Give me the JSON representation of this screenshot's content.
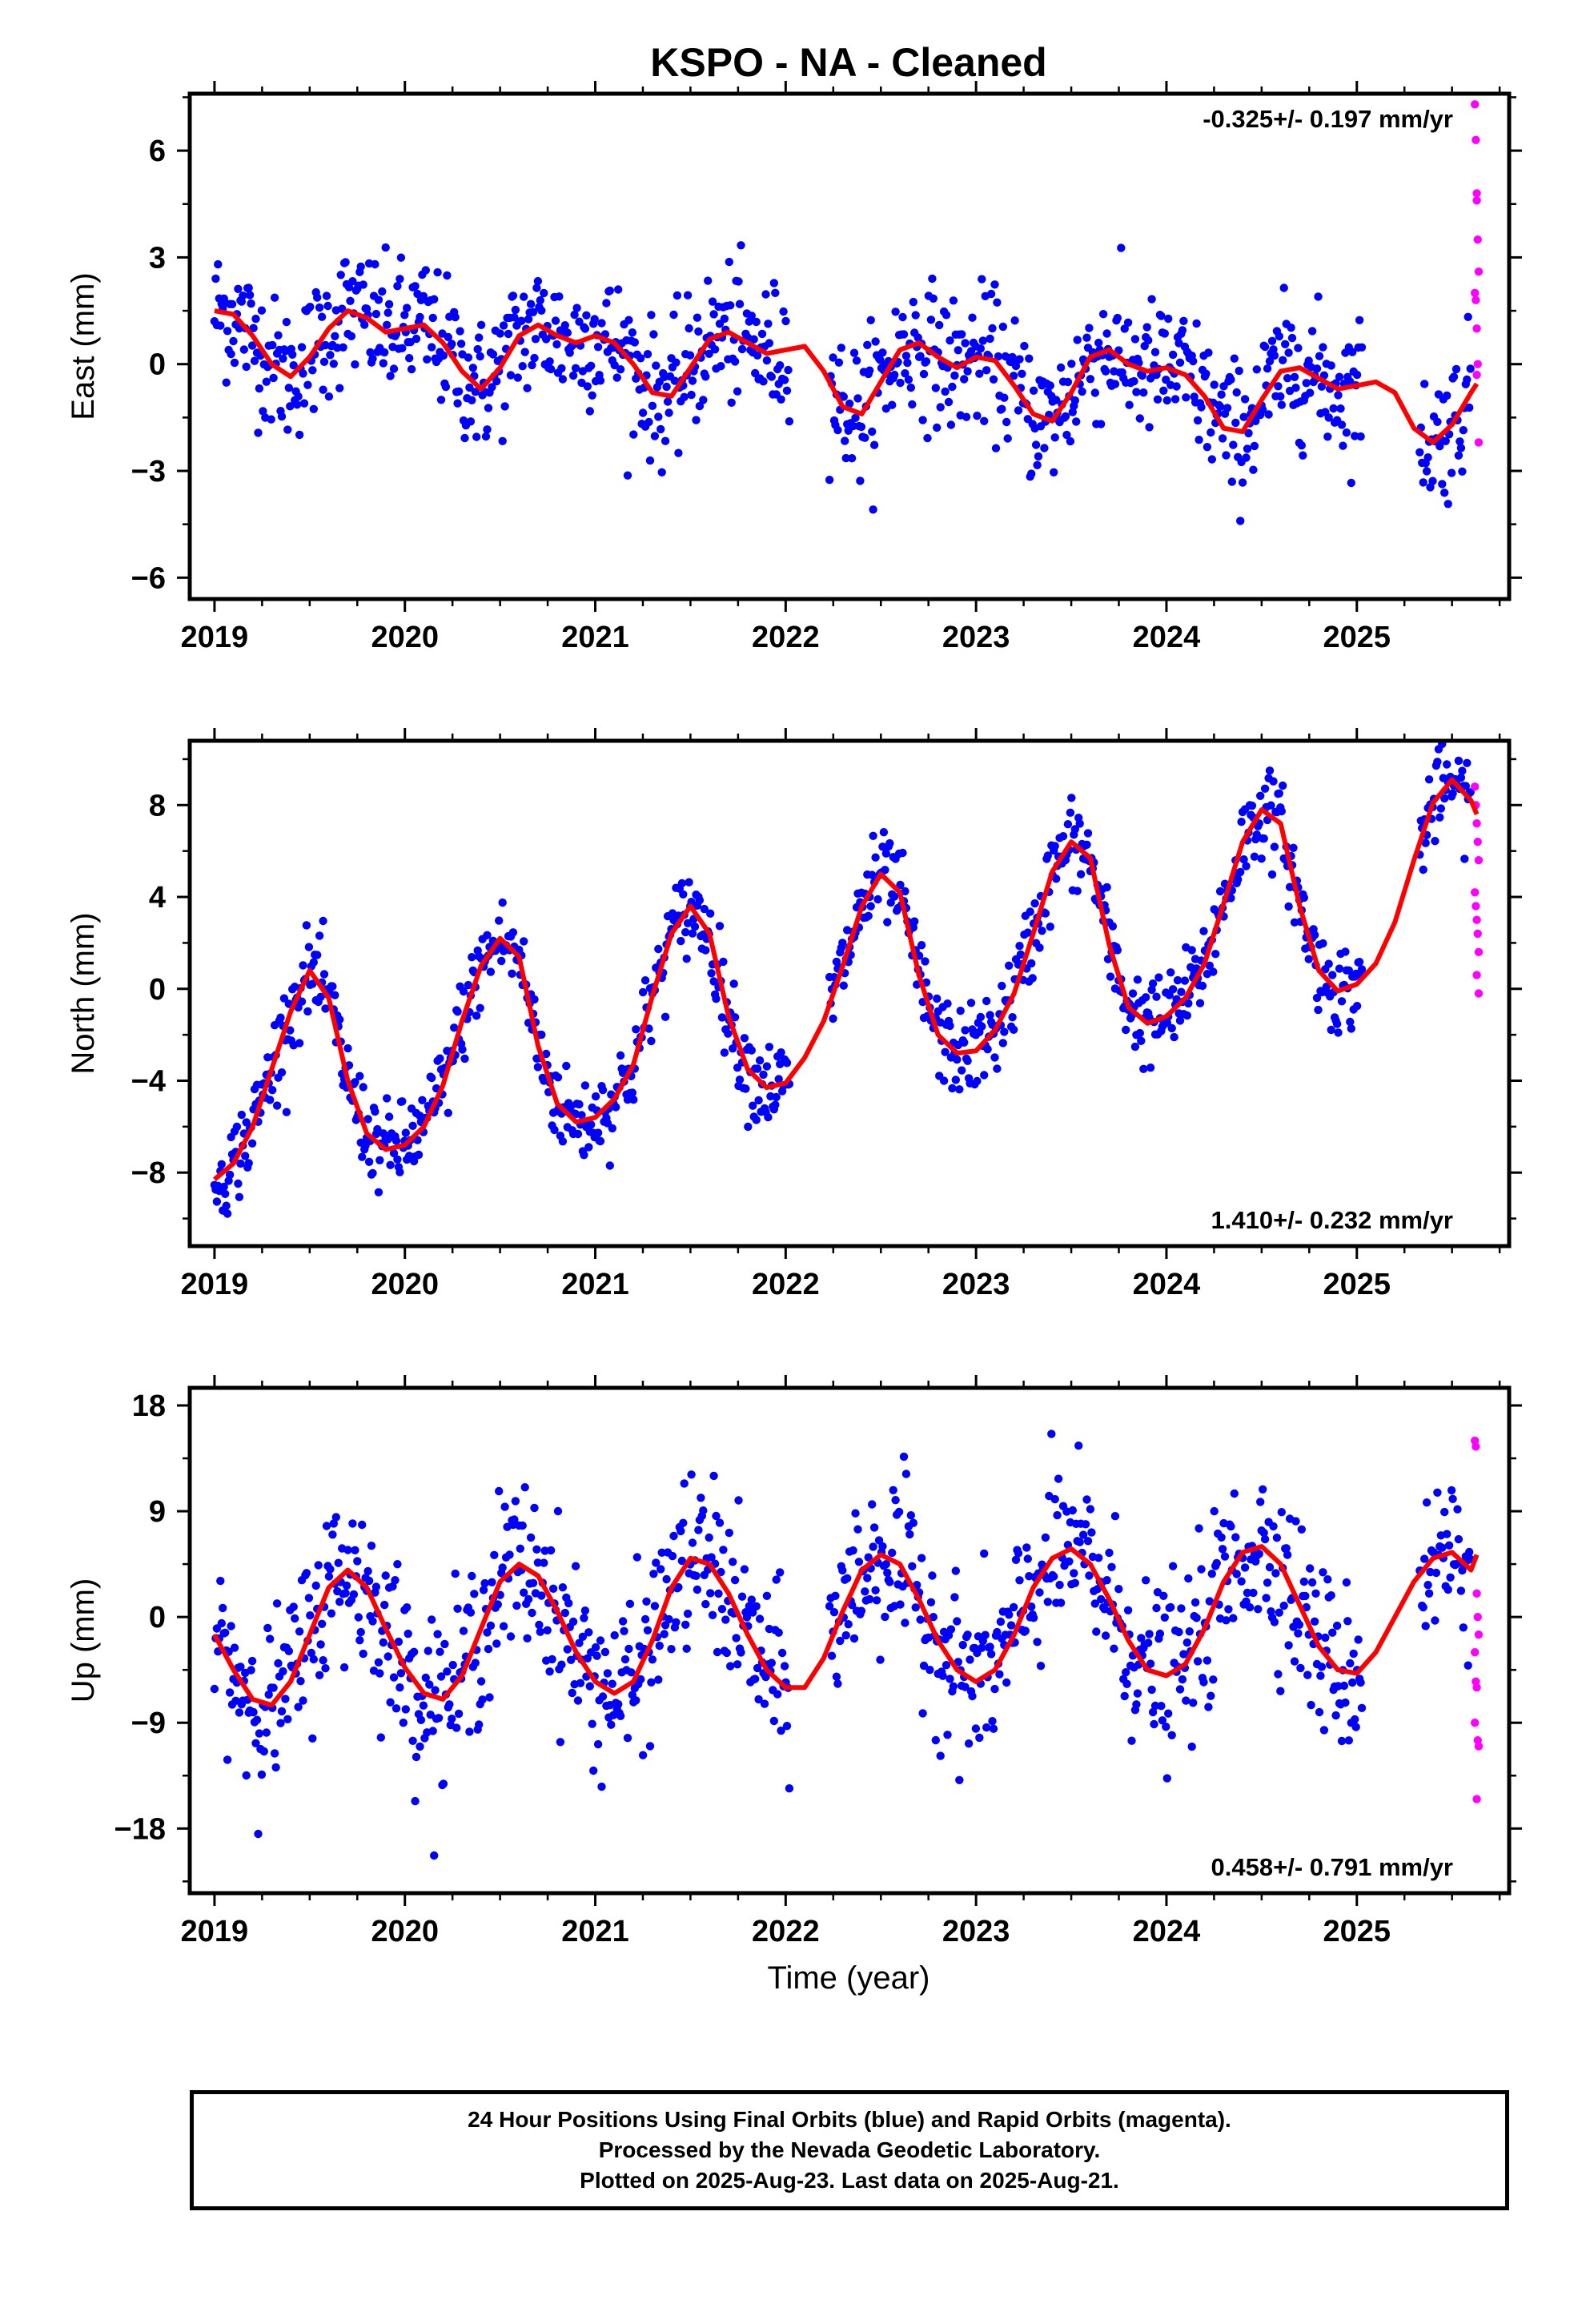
{
  "title": "KSPO  - NA - Cleaned",
  "colors": {
    "final": "#0000ff",
    "rapid": "#ff00ff",
    "fit": "#ff0000"
  },
  "xlabel": "Time (year)",
  "xticks": [
    "2019",
    "2020",
    "2021",
    "2022",
    "2023",
    "2024",
    "2025"
  ],
  "footer": {
    "line1": "24 Hour Positions Using Final Orbits (blue) and Rapid Orbits (magenta).",
    "line2": "Processed by the Nevada Geodetic Laboratory.",
    "line3": "Plotted on 2025-Aug-23. Last data on 2025-Aug-21."
  },
  "chart_data": [
    {
      "type": "scatter",
      "ylabel": "East (mm)",
      "rate_label": "-0.325+/- 0.197 mm/yr",
      "xlim": [
        2018.87,
        2025.8
      ],
      "ylim": [
        -6.6,
        7.6
      ],
      "yticks": [
        -6,
        -3,
        0,
        3,
        6
      ],
      "fit_curve": {
        "x": [
          2019.0,
          2019.1,
          2019.2,
          2019.3,
          2019.4,
          2019.5,
          2019.6,
          2019.7,
          2019.8,
          2019.9,
          2020.0,
          2020.1,
          2020.2,
          2020.3,
          2020.4,
          2020.5,
          2020.6,
          2020.7,
          2020.8,
          2020.9,
          2021.0,
          2021.1,
          2021.2,
          2021.3,
          2021.4,
          2021.5,
          2021.6,
          2021.7,
          2021.8,
          2021.9,
          2022.0,
          2022.1,
          2022.2,
          2022.3,
          2022.4,
          2022.5,
          2022.6,
          2022.7,
          2022.8,
          2022.9,
          2023.0,
          2023.1,
          2023.2,
          2023.3,
          2023.4,
          2023.5,
          2023.6,
          2023.7,
          2023.8,
          2023.9,
          2024.0,
          2024.1,
          2024.2,
          2024.3,
          2024.4,
          2024.5,
          2024.6,
          2024.7,
          2024.8,
          2024.9,
          2025.0,
          2025.1,
          2025.2,
          2025.3,
          2025.4,
          2025.5,
          2025.6,
          2025.63
        ],
        "y": [
          1.5,
          1.4,
          0.8,
          0.0,
          -0.35,
          0.2,
          1.0,
          1.5,
          1.3,
          0.9,
          1.0,
          1.1,
          0.6,
          -0.2,
          -0.7,
          -0.1,
          0.8,
          1.1,
          0.8,
          0.6,
          0.8,
          0.6,
          0.0,
          -0.8,
          -0.9,
          -0.1,
          0.7,
          0.9,
          0.6,
          0.3,
          0.4,
          0.5,
          -0.2,
          -1.2,
          -1.4,
          -0.5,
          0.4,
          0.6,
          0.2,
          -0.1,
          0.2,
          0.1,
          -0.6,
          -1.4,
          -1.6,
          -0.8,
          0.2,
          0.4,
          0.0,
          -0.2,
          -0.1,
          -0.3,
          -0.9,
          -1.8,
          -1.9,
          -1.0,
          -0.2,
          -0.1,
          -0.4,
          -0.7,
          -0.6,
          -0.5,
          -0.8,
          -1.8,
          -2.2,
          -1.7,
          -0.8,
          -0.55
        ]
      },
      "rapid_points": {
        "x": [
          2025.62,
          2025.625,
          2025.63,
          2025.63,
          2025.635,
          2025.64,
          2025.62,
          2025.625,
          2025.63,
          2025.635,
          2025.63,
          2025.64
        ],
        "y": [
          7.3,
          6.3,
          4.8,
          4.6,
          3.5,
          2.6,
          2.0,
          1.8,
          1.0,
          0.0,
          -0.3,
          -2.2
        ]
      }
    },
    {
      "type": "scatter",
      "ylabel": "North (mm)",
      "rate_label": "1.410+/- 0.232 mm/yr",
      "xlim": [
        2018.87,
        2025.8
      ],
      "ylim": [
        -11.2,
        10.8
      ],
      "yticks": [
        -8,
        -4,
        0,
        4,
        8
      ],
      "fit_curve": {
        "x": [
          2019.0,
          2019.1,
          2019.2,
          2019.3,
          2019.4,
          2019.5,
          2019.6,
          2019.7,
          2019.8,
          2019.9,
          2020.0,
          2020.1,
          2020.2,
          2020.3,
          2020.4,
          2020.5,
          2020.6,
          2020.7,
          2020.8,
          2020.9,
          2021.0,
          2021.1,
          2021.2,
          2021.3,
          2021.4,
          2021.5,
          2021.6,
          2021.7,
          2021.8,
          2021.9,
          2022.0,
          2022.1,
          2022.2,
          2022.3,
          2022.4,
          2022.5,
          2022.6,
          2022.7,
          2022.8,
          2022.9,
          2023.0,
          2023.1,
          2023.2,
          2023.3,
          2023.4,
          2023.5,
          2023.6,
          2023.7,
          2023.8,
          2023.9,
          2024.0,
          2024.1,
          2024.2,
          2024.3,
          2024.4,
          2024.5,
          2024.6,
          2024.7,
          2024.8,
          2024.9,
          2025.0,
          2025.1,
          2025.2,
          2025.3,
          2025.4,
          2025.5,
          2025.6,
          2025.63
        ],
        "y": [
          -8.3,
          -7.6,
          -6.0,
          -3.5,
          -1.0,
          0.8,
          -0.4,
          -4.0,
          -6.3,
          -7.0,
          -6.8,
          -6.0,
          -4.2,
          -1.4,
          1.0,
          2.2,
          1.4,
          -2.5,
          -5.0,
          -5.8,
          -5.6,
          -4.8,
          -3.3,
          -0.3,
          2.4,
          3.6,
          2.4,
          -1.2,
          -3.5,
          -4.3,
          -4.1,
          -3.0,
          -1.4,
          1.0,
          3.6,
          5.0,
          4.2,
          0.6,
          -2.0,
          -2.8,
          -2.7,
          -1.8,
          -0.2,
          2.4,
          5.1,
          6.4,
          5.7,
          1.9,
          -0.8,
          -1.5,
          -1.2,
          -0.4,
          1.1,
          3.7,
          6.4,
          7.8,
          7.2,
          3.6,
          0.8,
          -0.1,
          0.2,
          1.1,
          2.9,
          5.6,
          8.1,
          9.1,
          8.2,
          7.6
        ]
      },
      "rapid_points": {
        "x": [
          2025.62,
          2025.625,
          2025.63,
          2025.635,
          2025.64,
          2025.62,
          2025.625,
          2025.63,
          2025.635,
          2025.64,
          2025.63,
          2025.64
        ],
        "y": [
          8.8,
          8.0,
          7.2,
          6.4,
          5.6,
          4.2,
          3.6,
          3.0,
          2.4,
          1.6,
          0.6,
          -0.2
        ]
      }
    },
    {
      "type": "scatter",
      "ylabel": "Up (mm)",
      "rate_label": "0.458+/- 0.791 mm/yr",
      "xlim": [
        2018.87,
        2025.8
      ],
      "ylim": [
        -23.5,
        19.5
      ],
      "yticks": [
        -18,
        -9,
        0,
        9,
        18
      ],
      "fit_curve": {
        "x": [
          2019.0,
          2019.1,
          2019.2,
          2019.3,
          2019.4,
          2019.5,
          2019.6,
          2019.7,
          2019.8,
          2019.9,
          2020.0,
          2020.1,
          2020.2,
          2020.3,
          2020.4,
          2020.5,
          2020.6,
          2020.7,
          2020.8,
          2020.9,
          2021.0,
          2021.1,
          2021.2,
          2021.3,
          2021.4,
          2021.5,
          2021.6,
          2021.7,
          2021.8,
          2021.9,
          2022.0,
          2022.1,
          2022.2,
          2022.3,
          2022.4,
          2022.5,
          2022.6,
          2022.7,
          2022.8,
          2022.9,
          2023.0,
          2023.1,
          2023.2,
          2023.3,
          2023.4,
          2023.5,
          2023.6,
          2023.7,
          2023.8,
          2023.9,
          2024.0,
          2024.1,
          2024.2,
          2024.3,
          2024.4,
          2024.5,
          2024.6,
          2024.7,
          2024.8,
          2024.9,
          2025.0,
          2025.1,
          2025.2,
          2025.3,
          2025.4,
          2025.5,
          2025.6,
          2025.63
        ],
        "y": [
          -1.5,
          -4.5,
          -7.0,
          -7.5,
          -5.5,
          -1.5,
          2.5,
          4.0,
          2.5,
          -1.0,
          -4.3,
          -6.5,
          -7.0,
          -5.0,
          -1.0,
          3.0,
          4.5,
          3.5,
          0.5,
          -3.0,
          -5.5,
          -6.5,
          -5.5,
          -2.0,
          2.5,
          5.0,
          4.5,
          2.0,
          -1.5,
          -4.5,
          -6.0,
          -6.0,
          -3.5,
          0.5,
          4.0,
          5.3,
          4.5,
          1.5,
          -2.0,
          -4.5,
          -5.5,
          -4.5,
          -1.5,
          2.5,
          5.0,
          5.8,
          4.5,
          1.5,
          -2.0,
          -4.5,
          -5.0,
          -4.0,
          -1.0,
          3.0,
          5.5,
          6.0,
          4.5,
          1.0,
          -2.5,
          -4.5,
          -4.8,
          -3.0,
          0.0,
          3.0,
          5.0,
          5.5,
          4.0,
          5.3
        ]
      },
      "rapid_points": {
        "x": [
          2025.62,
          2025.625,
          2025.63,
          2025.635,
          2025.64,
          2025.62,
          2025.625,
          2025.63,
          2025.635,
          2025.64,
          2025.63,
          2025.62
        ],
        "y": [
          15.0,
          14.5,
          2.0,
          0.0,
          -1.5,
          -3.0,
          -5.5,
          -6.0,
          -10.5,
          -11.0,
          -15.5,
          -9.0
        ]
      }
    }
  ]
}
